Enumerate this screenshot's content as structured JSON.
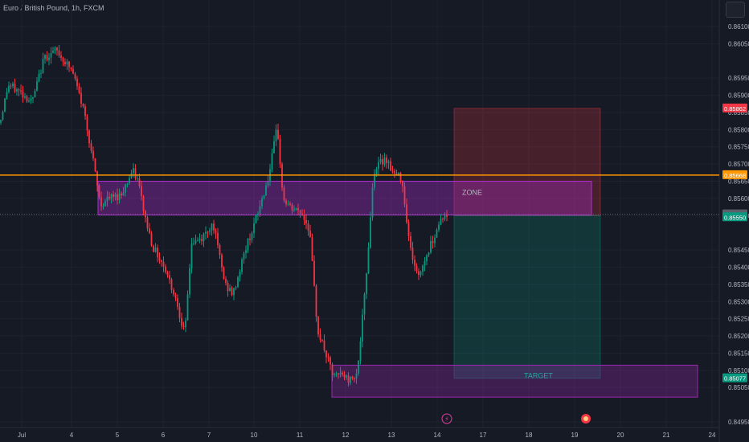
{
  "header": {
    "symbol_title": "Euro / British Pound, 1h, FXCM"
  },
  "chart_data": {
    "type": "candlestick",
    "symbol": "Euro / British Pound",
    "interval": "1h",
    "source": "FXCM",
    "ylim": [
      0.8493,
      0.8614
    ],
    "y_ticks": [
      "0.86100",
      "0.86050",
      "0.85950",
      "0.85900",
      "0.85850",
      "0.85800",
      "0.85750",
      "0.85700",
      "0.85650",
      "0.85600",
      "0.85550",
      "0.85450",
      "0.85400",
      "0.85350",
      "0.85300",
      "0.85250",
      "0.85200",
      "0.85150",
      "0.85100",
      "0.85050",
      "0.84950"
    ],
    "x_ticks": [
      "Jul",
      "4",
      "5",
      "6",
      "7",
      "10",
      "11",
      "12",
      "13",
      "14",
      "17",
      "18",
      "19",
      "20",
      "21",
      "24"
    ],
    "price_labels": [
      {
        "value": "0.85862",
        "color": "#f23645"
      },
      {
        "value": "0.85668",
        "color": "#ff9800"
      },
      {
        "value": "0.85554",
        "color": "#5d606b"
      },
      {
        "value": "0.85550",
        "color": "#089981"
      },
      {
        "value": "0.85077",
        "color": "#089981"
      }
    ],
    "horizontal_line": {
      "price": 0.85668,
      "color": "#ff9800"
    },
    "annotations": [
      {
        "label": "ZONE",
        "color": "#b02fcf",
        "price_top": 0.8565,
        "price_bottom": 0.85552
      },
      {
        "label": "TARGET",
        "color": "#9c27b0",
        "price_top": 0.85115,
        "price_bottom": 0.85022
      }
    ],
    "position": {
      "entry": 0.8555,
      "stop": 0.85862,
      "target": 0.85077,
      "stop_color": "#f23645",
      "target_color": "#089981"
    },
    "event_icons": [
      "lightning-icon",
      "flag-icon"
    ],
    "colors": {
      "up": "#089981",
      "down": "#f23645",
      "background": "#161a25"
    }
  }
}
